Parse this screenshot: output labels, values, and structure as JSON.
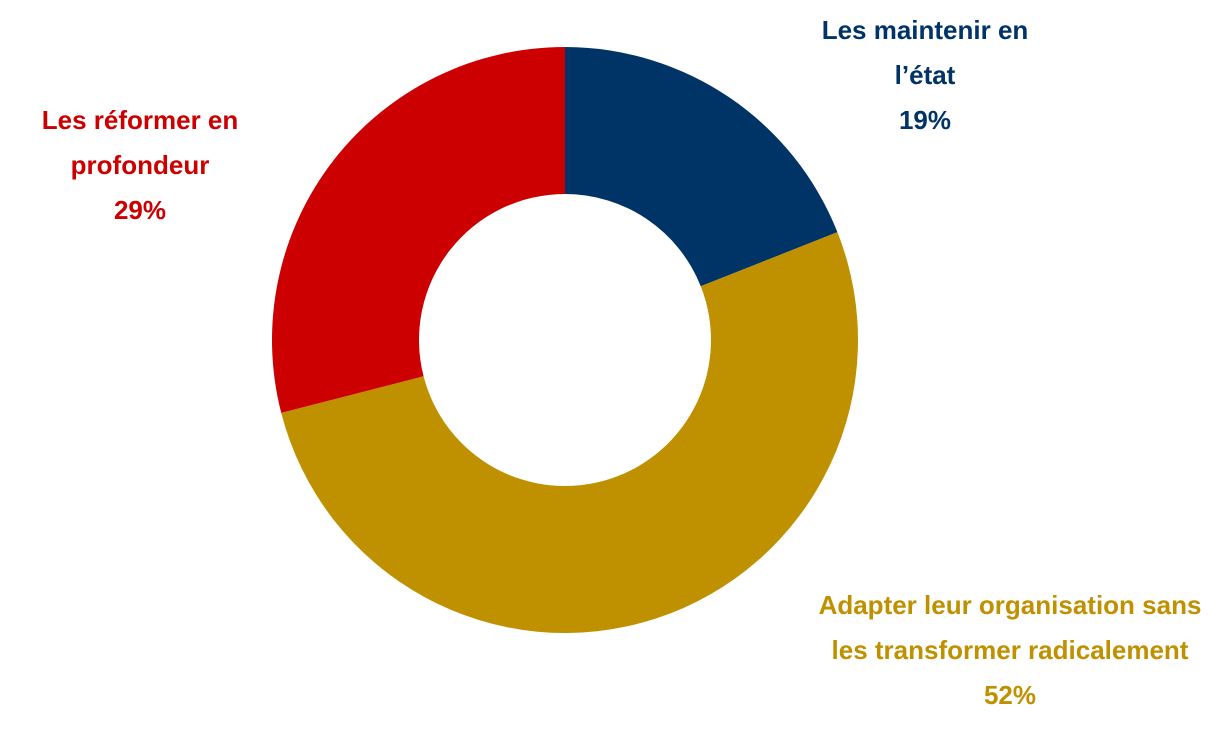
{
  "chart_data": {
    "type": "donut",
    "categories": [
      "Les maintenir en l’état",
      "Adapter leur organisation sans les transformer radicalement",
      "Les réformer en profondeur"
    ],
    "values": [
      19,
      52,
      29
    ],
    "value_labels": [
      "19%",
      "52%",
      "29%"
    ],
    "colors": [
      "#003366",
      "#BF9000",
      "#CC0000"
    ]
  }
}
